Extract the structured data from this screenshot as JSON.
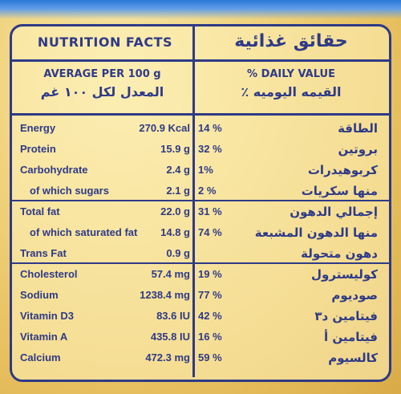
{
  "title_en": "NUTRITION FACTS",
  "title_ar": "حقائق غذائية",
  "per_en": "AVERAGE PER 100 g",
  "per_ar": "المعدل لكل ١٠٠ غم",
  "dv_en": "% DAILY VALUE",
  "dv_ar": "القيمه اليوميه ٪",
  "rows": [
    {
      "en": "Energy",
      "value": "270.9 Kcal",
      "pct": "14 %",
      "ar": "الطاقة"
    },
    {
      "en": "Protein",
      "value": "15.9 g",
      "pct": "32 %",
      "ar": "بروتين"
    },
    {
      "en": "Carbohydrate",
      "value": "2.4 g",
      "pct": "1%",
      "ar": "كربوهيدرات"
    },
    {
      "en": "of which sugars",
      "value": "2.1 g",
      "pct": "2 %",
      "ar": "منها سكريات"
    },
    {
      "en": "Total fat",
      "value": "22.0 g",
      "pct": "31 %",
      "ar": "إجمالي الدهون"
    },
    {
      "en": "of which saturated fat",
      "value": "14.8 g",
      "pct": "74 %",
      "ar": "منها الدهون المشبعة"
    },
    {
      "en": "Trans Fat",
      "value": "0.9 g",
      "pct": "",
      "ar": "دهون متحولة"
    },
    {
      "en": "Cholesterol",
      "value": "57.4 mg",
      "pct": "19 %",
      "ar": "كوليسترول"
    },
    {
      "en": "Sodium",
      "value": "1238.4 mg",
      "pct": "77 %",
      "ar": "صوديوم"
    },
    {
      "en": "Vitamin D3",
      "value": "83.6 IU",
      "pct": "42 %",
      "ar": "فيتامين د٣"
    },
    {
      "en": "Vitamin A",
      "value": "435.8 IU",
      "pct": "16 %",
      "ar": "فيتامين أ"
    },
    {
      "en": "Calcium",
      "value": "472.3 mg",
      "pct": "59 %",
      "ar": "كالسيوم"
    }
  ]
}
